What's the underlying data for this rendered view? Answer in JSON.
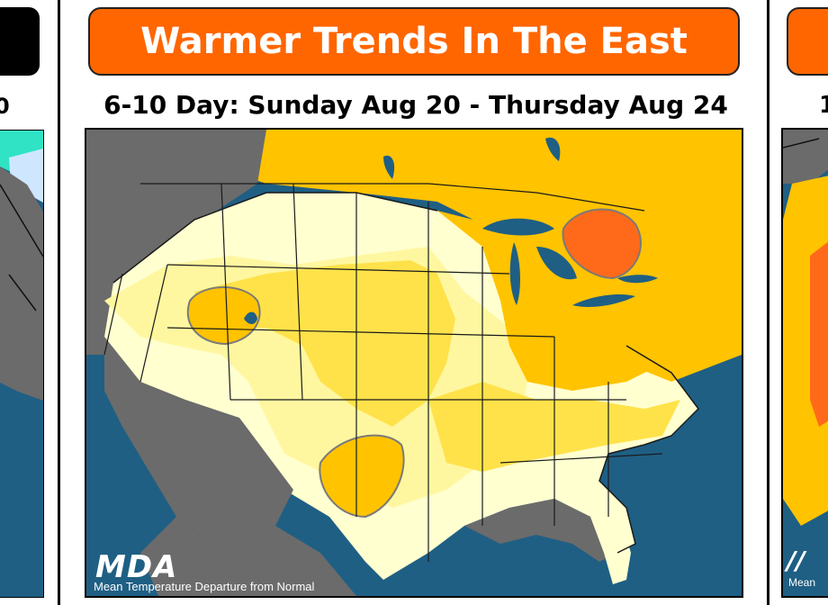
{
  "main_panel": {
    "title": "Warmer Trends In The East",
    "date_range": "6-10 Day: Sunday Aug 20 - Thursday Aug 24",
    "logo_text": "MDA",
    "legend_caption": "Mean Temperature Departure from Normal"
  },
  "left_panel": {
    "subtitle_fragment": "0"
  },
  "right_panel": {
    "subtitle_fragment": "1",
    "logo_fragment": "//",
    "caption_fragment": "Mean"
  },
  "colors": {
    "title_pill": "#ff6600",
    "ocean": "#1f5f84",
    "near_normal_gray": "#6b6b6b",
    "light_cream": "#ffffd0",
    "pale_yellow": "#fff7a0",
    "yellow": "#ffe24a",
    "gold": "#ffc300",
    "orange_dark": "#ff6a1a",
    "border_lines": "#1a1a1a"
  }
}
